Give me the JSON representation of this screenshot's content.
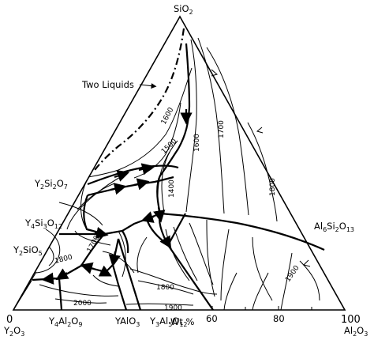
{
  "vertices": {
    "top": {
      "formula": "SiO",
      "sub": "2"
    },
    "left": {
      "formula": "Y",
      "sub1": "2",
      "mid": "O",
      "sub2": "3"
    },
    "right": {
      "formula": "Al",
      "sub1": "2",
      "mid": "O",
      "sub2": "3"
    }
  },
  "axis": {
    "ticks": [
      "0",
      "60",
      "80",
      "100"
    ],
    "unit": "Wt %"
  },
  "compounds": {
    "y2si2o7": {
      "a": "Y",
      "s1": "2",
      "b": "Si",
      "s2": "2",
      "c": "O",
      "s3": "7"
    },
    "y4si3o12": {
      "a": "Y",
      "s1": "4",
      "b": "Si",
      "s2": "3",
      "c": "O",
      "s3": "12"
    },
    "y2sio5": {
      "a": "Y",
      "s1": "2",
      "b": "SiO",
      "s2": "5"
    },
    "y4al2o9": {
      "a": "Y",
      "s1": "4",
      "b": "Al",
      "s2": "2",
      "c": "O",
      "s3": "9"
    },
    "yalo3": {
      "text": "YAlO",
      "sub": "3"
    },
    "y3al5o12": {
      "a": "Y",
      "s1": "3",
      "b": "Al",
      "s2": "5",
      "c": "O",
      "s3": "12"
    },
    "al6si2o13": {
      "a": "Al",
      "s1": "6",
      "b": "Si",
      "s2": "2",
      "c": "O",
      "s3": "13"
    }
  },
  "annotation": "Two Liquids",
  "isotherms": [
    "1600",
    "1500",
    "1600",
    "1700",
    "1400",
    "1800",
    "1700",
    "1800",
    "1900",
    "1800",
    "2000",
    "1900"
  ]
}
